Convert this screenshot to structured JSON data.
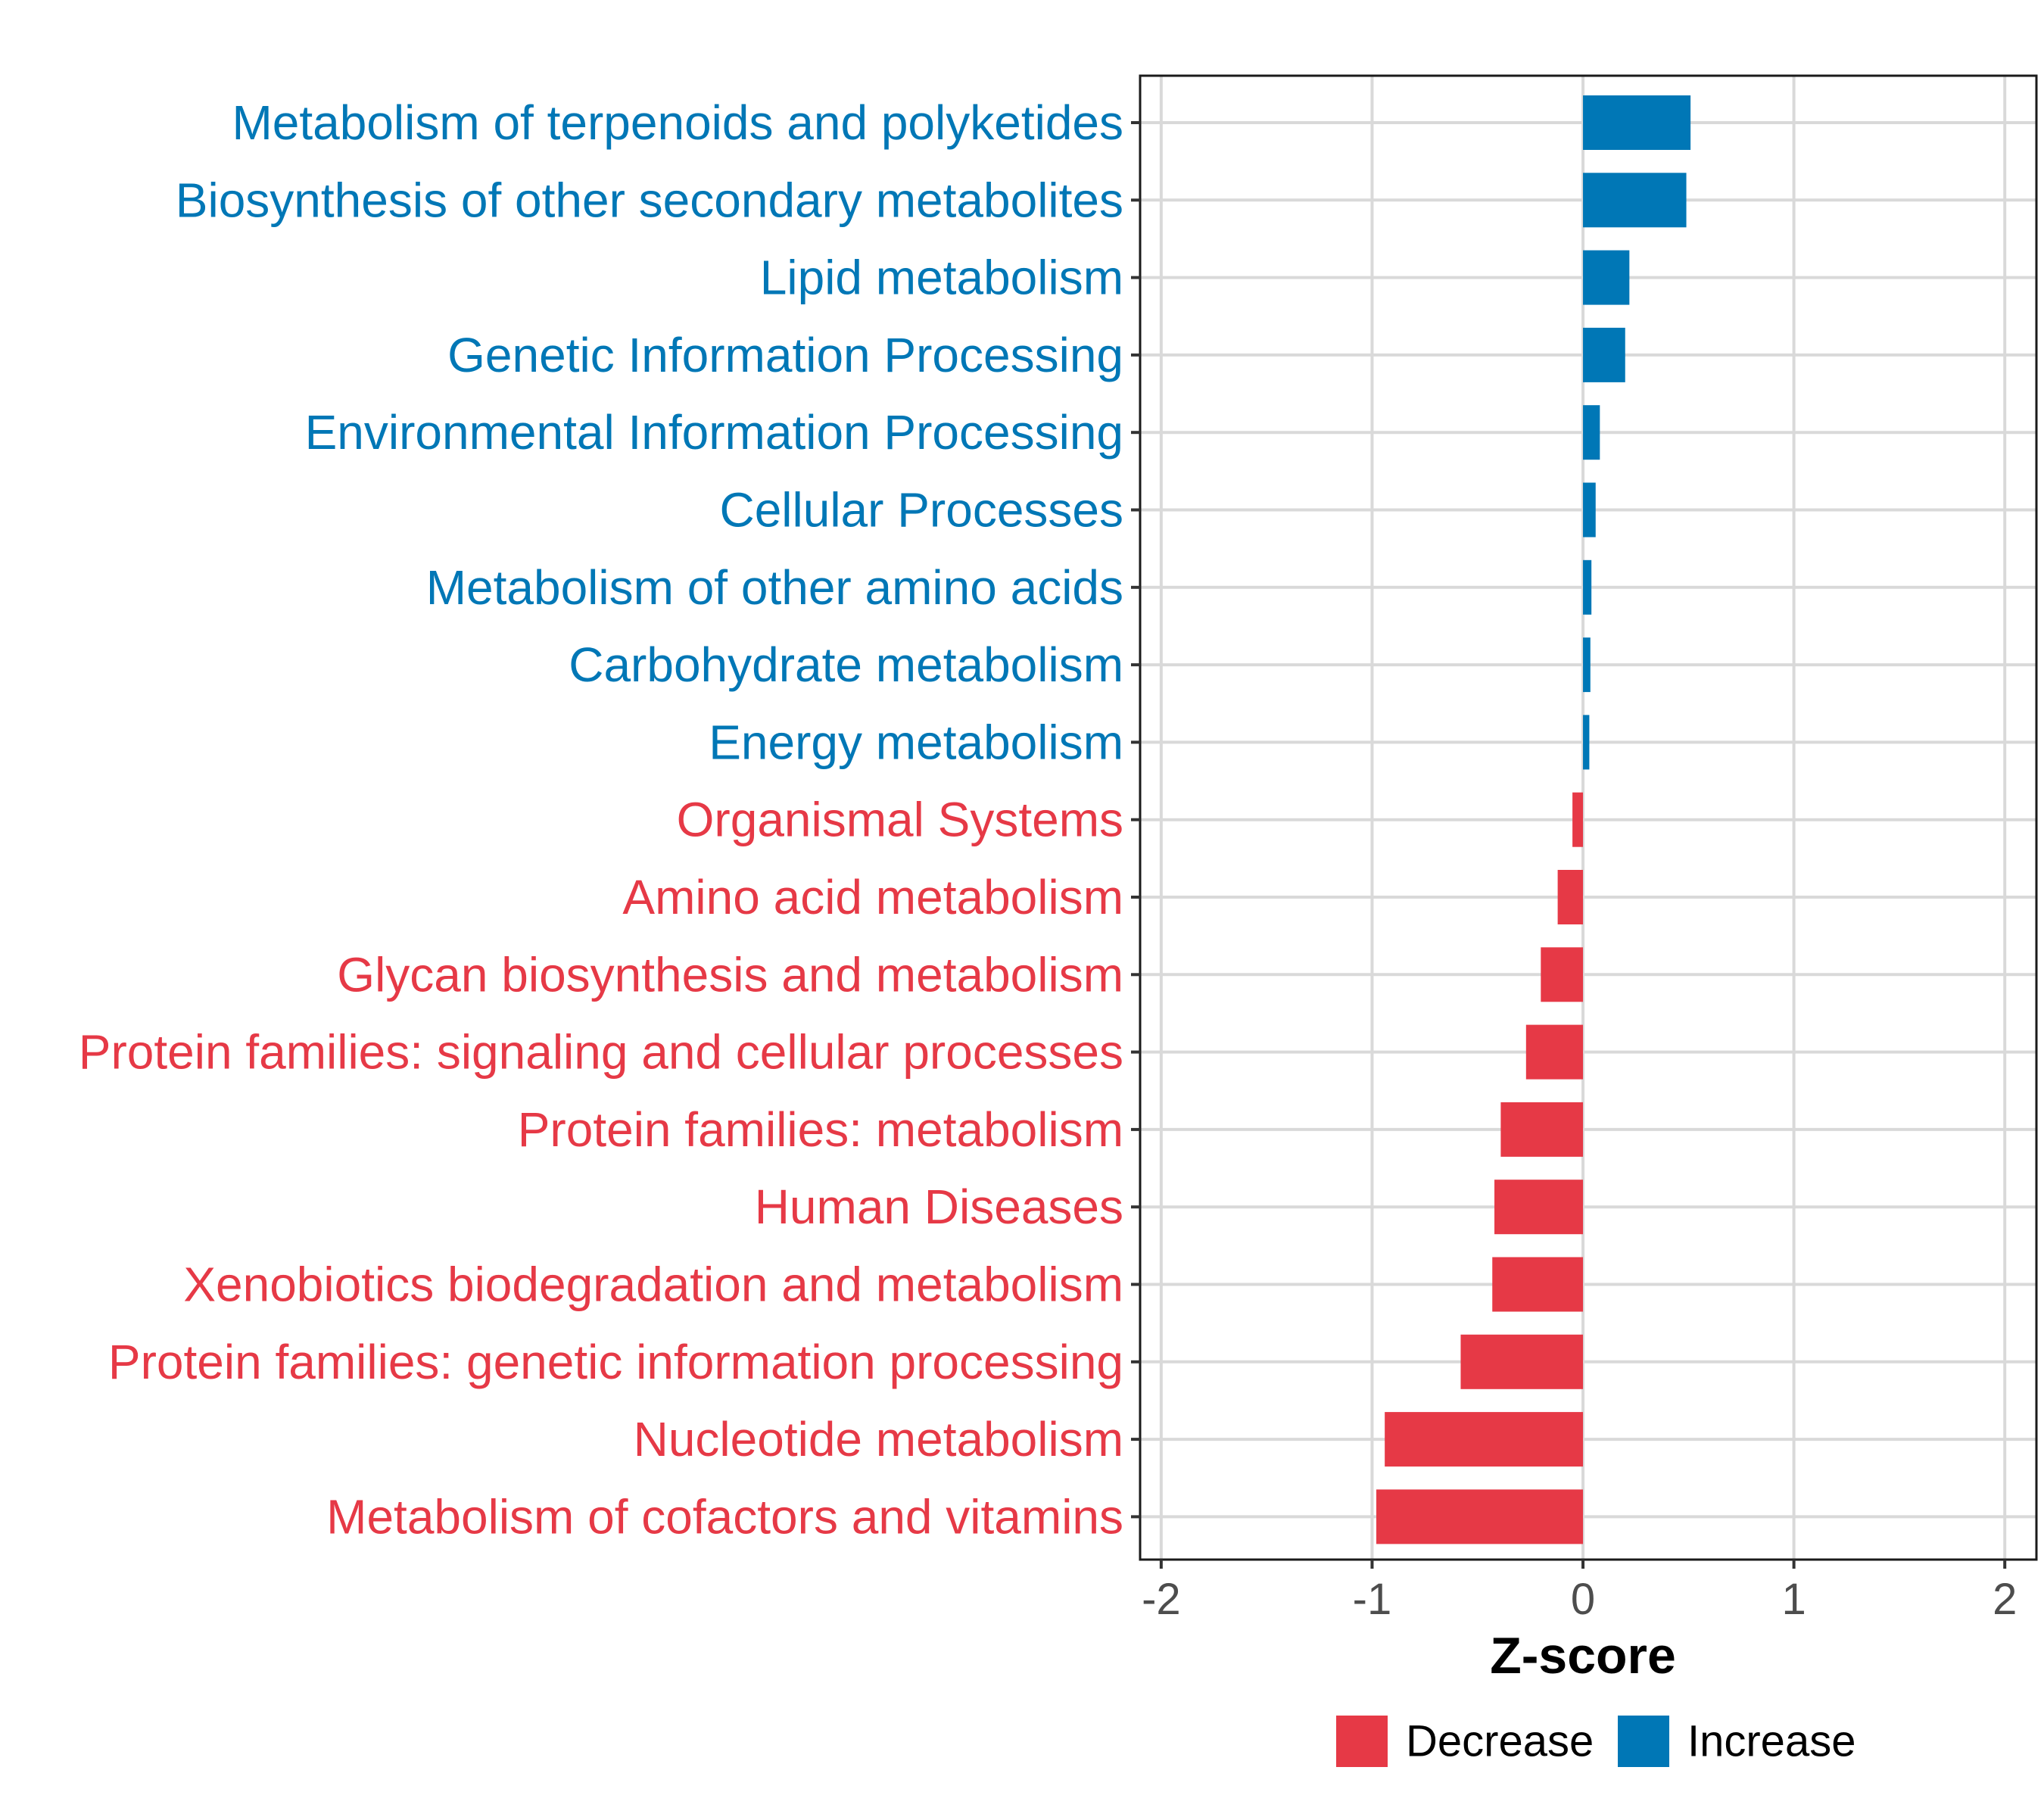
{
  "chart_data": {
    "type": "bar",
    "orientation": "horizontal",
    "title": "",
    "xlabel": "Z-score",
    "ylabel": "",
    "xlim": [
      -2.1,
      2.15
    ],
    "x_ticks": [
      "-2",
      "-1",
      "0",
      "1",
      "2"
    ],
    "x_tick_values": [
      -2,
      -1,
      0,
      1,
      2
    ],
    "grid": true,
    "colors": {
      "Decrease": "#e63946",
      "Increase": "#0077b6"
    },
    "legend": {
      "position": "bottom",
      "entries": [
        {
          "label": "Decrease",
          "color": "#e63946"
        },
        {
          "label": "Increase",
          "color": "#0077b6"
        }
      ]
    },
    "bars": [
      {
        "category": "Metabolism of terpenoids and polyketides",
        "value": 0.51,
        "direction": "Increase"
      },
      {
        "category": "Biosynthesis of other secondary metabolites",
        "value": 0.49,
        "direction": "Increase"
      },
      {
        "category": "Lipid metabolism",
        "value": 0.22,
        "direction": "Increase"
      },
      {
        "category": "Genetic Information Processing",
        "value": 0.2,
        "direction": "Increase"
      },
      {
        "category": "Environmental Information Processing",
        "value": 0.08,
        "direction": "Increase"
      },
      {
        "category": "Cellular Processes",
        "value": 0.06,
        "direction": "Increase"
      },
      {
        "category": "Metabolism of other amino acids",
        "value": 0.04,
        "direction": "Increase"
      },
      {
        "category": "Carbohydrate metabolism",
        "value": 0.035,
        "direction": "Increase"
      },
      {
        "category": "Energy metabolism",
        "value": 0.03,
        "direction": "Increase"
      },
      {
        "category": "Organismal Systems",
        "value": -0.05,
        "direction": "Decrease"
      },
      {
        "category": "Amino acid metabolism",
        "value": -0.12,
        "direction": "Decrease"
      },
      {
        "category": "Glycan biosynthesis and metabolism",
        "value": -0.2,
        "direction": "Decrease"
      },
      {
        "category": "Protein families: signaling and cellular processes",
        "value": -0.27,
        "direction": "Decrease"
      },
      {
        "category": "Protein families: metabolism",
        "value": -0.39,
        "direction": "Decrease"
      },
      {
        "category": "Human Diseases",
        "value": -0.42,
        "direction": "Decrease"
      },
      {
        "category": "Xenobiotics biodegradation and metabolism",
        "value": -0.43,
        "direction": "Decrease"
      },
      {
        "category": "Protein families: genetic information processing",
        "value": -0.58,
        "direction": "Decrease"
      },
      {
        "category": "Nucleotide metabolism",
        "value": -0.94,
        "direction": "Decrease"
      },
      {
        "category": "Metabolism of cofactors and vitamins",
        "value": -0.98,
        "direction": "Decrease"
      }
    ]
  }
}
